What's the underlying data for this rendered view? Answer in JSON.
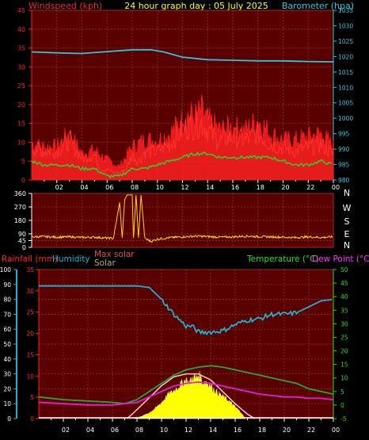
{
  "header": {
    "title": "24 hour graph day : 05 July 2025",
    "left_label": "Windspeed (kph)",
    "right_label": "Barometer (hpa)"
  },
  "colors": {
    "panel_bg": "#5a0000",
    "grid": "#8a3a3a",
    "wind": "#ff0000",
    "gust": "#ff2020",
    "wind_avg": "#2ecc2e",
    "baro": "#28c8d8",
    "direction": "#ffd400",
    "temperature": "#2aa82a",
    "dew_point": "#e020e0",
    "humidity": "#20b0c8",
    "solar": "#ffff00",
    "max_solar": "#ffc8c8",
    "rain": "#ffffff"
  },
  "x_tick_labels": [
    "02",
    "04",
    "06",
    "08",
    "10",
    "12",
    "14",
    "16",
    "18",
    "20",
    "22",
    "00"
  ],
  "chart_data": [
    {
      "type": "line",
      "name": "wind-baro",
      "x_unit": "hour",
      "x_range": [
        0,
        24
      ],
      "left_axis": {
        "label": "Windspeed (kph)",
        "range": [
          0,
          45
        ],
        "ticks": [
          "0",
          "5",
          "10",
          "15",
          "20",
          "25",
          "30",
          "35",
          "40",
          "45"
        ]
      },
      "right_axis": {
        "label": "Barometer (hpa)",
        "range": [
          980,
          1035
        ],
        "ticks": [
          "980",
          "985",
          "990",
          "995",
          "1000",
          "1005",
          "1010",
          "1015",
          "1020",
          "1025",
          "1030",
          "1035"
        ]
      },
      "series": [
        {
          "name": "Barometer (hpa)",
          "axis": "right",
          "x": [
            0,
            2,
            4,
            6,
            8,
            9.5,
            10.5,
            12,
            14,
            16,
            18,
            20,
            22,
            24
          ],
          "values": [
            1021.5,
            1021.2,
            1021.0,
            1021.6,
            1022.2,
            1022.2,
            1021.5,
            1019.8,
            1019.0,
            1018.8,
            1018.6,
            1018.6,
            1018.4,
            1018.3
          ]
        },
        {
          "name": "Wind speed",
          "axis": "left",
          "x": [
            0,
            1,
            2,
            3,
            4,
            5,
            5.5,
            6,
            6.5,
            7,
            7.5,
            8,
            8.5,
            9,
            10,
            11,
            12,
            12.5,
            13,
            13.5,
            14,
            14.5,
            15,
            16,
            17,
            18,
            19,
            20,
            21,
            22,
            23,
            24
          ],
          "values": [
            9,
            8,
            8,
            11,
            6,
            7,
            3,
            3,
            2,
            2,
            3,
            7,
            5,
            8,
            8,
            10,
            14,
            15,
            15,
            16,
            14,
            12,
            11,
            12,
            11,
            13,
            10,
            9,
            8,
            9,
            10,
            7
          ]
        },
        {
          "name": "Gust",
          "axis": "left",
          "x": [
            0,
            1,
            2,
            3,
            4,
            5,
            6,
            7,
            8,
            9,
            10,
            11,
            12,
            12.5,
            13,
            13.5,
            14,
            15,
            16,
            17,
            18,
            19,
            20,
            21,
            22,
            23,
            24
          ],
          "values": [
            11,
            10,
            10,
            14,
            8,
            9,
            6,
            4,
            10,
            12,
            12,
            14,
            18,
            20,
            19,
            21,
            18,
            15,
            16,
            15,
            18,
            14,
            12,
            12,
            13,
            14,
            10
          ]
        },
        {
          "name": "Average",
          "axis": "left",
          "x": [
            0,
            1,
            2,
            3,
            4,
            5,
            6,
            7,
            8,
            9,
            10,
            11,
            12,
            13,
            14,
            15,
            16,
            17,
            18,
            19,
            20,
            21,
            22,
            23,
            24
          ],
          "values": [
            5,
            4,
            4,
            4,
            3,
            3,
            1,
            1,
            3,
            3,
            4,
            5,
            6,
            7,
            7,
            6,
            6,
            6,
            6,
            6,
            5,
            4,
            4,
            5,
            4
          ]
        }
      ]
    },
    {
      "type": "line",
      "name": "wind-direction",
      "x_range": [
        0,
        24
      ],
      "y_axis": {
        "range": [
          0,
          360
        ],
        "ticks": [
          "0",
          "45",
          "90",
          "180",
          "270",
          "360"
        ]
      },
      "right_labels": [
        "N",
        "W",
        "S",
        "E",
        "N"
      ],
      "series": [
        {
          "name": "Wind direction",
          "x": [
            0,
            1,
            2,
            3,
            4,
            5,
            6,
            6.5,
            7,
            7.2,
            7.4,
            7.6,
            8,
            8.1,
            8.3,
            8.5,
            8.7,
            9,
            9.5,
            10,
            11,
            12,
            13,
            14,
            15,
            16,
            17,
            18,
            19,
            20,
            21,
            22,
            23,
            24
          ],
          "values": [
            70,
            72,
            68,
            70,
            66,
            68,
            62,
            60,
            300,
            60,
            320,
            350,
            350,
            60,
            350,
            60,
            350,
            60,
            40,
            55,
            65,
            70,
            75,
            72,
            68,
            70,
            75,
            72,
            70,
            68,
            65,
            70,
            66,
            70
          ]
        }
      ]
    },
    {
      "type": "line",
      "name": "temp-humidity-solar",
      "x_range": [
        0,
        24
      ],
      "axes": [
        {
          "label": "Humidity",
          "range": [
            0,
            100
          ],
          "ticks": [
            "0",
            "10",
            "20",
            "30",
            "40",
            "50",
            "60",
            "70",
            "80",
            "90",
            "100"
          ]
        },
        {
          "label": "Rainfall (mm)",
          "range": [
            0,
            35
          ],
          "ticks": [
            "0",
            "5",
            "10",
            "15",
            "20",
            "25",
            "30",
            "35"
          ]
        },
        {
          "label": "Temperature (°C)",
          "range": [
            -5,
            50
          ],
          "ticks": [
            "-5",
            "0",
            "5",
            "10",
            "15",
            "20",
            "25",
            "30",
            "35",
            "40",
            "45",
            "50"
          ]
        }
      ],
      "legend": [
        "Rainfall (mm)",
        "Humidity",
        "Max solar",
        "Solar",
        "Temperature (°C)",
        "Dew Point (°C)"
      ],
      "series": [
        {
          "name": "Humidity",
          "axis": "Humidity",
          "x": [
            0,
            2,
            4,
            6,
            8,
            9,
            10,
            11,
            12,
            12.5,
            13,
            14,
            15,
            16,
            17,
            18,
            19,
            20,
            21,
            22,
            23,
            24
          ],
          "values": [
            89,
            89,
            89,
            89,
            89,
            88,
            80,
            70,
            62,
            62,
            58,
            58,
            59,
            63,
            66,
            67,
            70,
            70,
            71,
            75,
            79,
            80
          ]
        },
        {
          "name": "Temperature (°C)",
          "axis": "Temperature (°C)",
          "x": [
            0,
            2,
            4,
            6,
            7,
            8,
            9,
            10,
            11,
            12,
            13,
            14,
            15,
            16,
            17,
            18,
            19,
            20,
            21,
            22,
            23,
            24
          ],
          "values": [
            3.0,
            2.0,
            1.5,
            1.0,
            0.5,
            2.0,
            5.0,
            8.0,
            11.0,
            13.0,
            14.0,
            14.5,
            14.0,
            13.0,
            12.0,
            11.0,
            10.0,
            9.0,
            8.0,
            6.0,
            5.0,
            4.0
          ]
        },
        {
          "name": "Dew Point (°C)",
          "axis": "Temperature (°C)",
          "x": [
            0,
            2,
            4,
            6,
            8,
            9,
            10,
            11,
            12,
            13,
            14,
            15,
            16,
            17,
            18,
            19,
            20,
            21,
            22,
            23,
            24
          ],
          "values": [
            1.0,
            0.5,
            0.0,
            0.0,
            1.0,
            3.0,
            5.0,
            7.0,
            8.0,
            8.5,
            8.0,
            7.0,
            6.0,
            5.0,
            4.0,
            3.5,
            3.0,
            3.0,
            2.5,
            2.5,
            2.0
          ]
        },
        {
          "name": "Max solar",
          "axis": "Humidity",
          "x": [
            7.2,
            8,
            9,
            10,
            11,
            12,
            12.5,
            13,
            14,
            15,
            16,
            17,
            17.6
          ],
          "values": [
            0,
            6,
            14,
            22,
            28,
            30,
            30,
            30,
            26,
            18,
            10,
            3,
            0
          ]
        },
        {
          "name": "Solar",
          "axis": "Humidity",
          "x": [
            7.8,
            8.5,
            9,
            9.5,
            10,
            10.5,
            11,
            11.5,
            11.8,
            12,
            12.2,
            12.4,
            12.6,
            12.8,
            13,
            13.2,
            13.4,
            13.6,
            14,
            14.5,
            15,
            15.5,
            16,
            16.5,
            16.8
          ],
          "values": [
            0,
            2,
            4,
            7,
            11,
            16,
            19,
            23,
            25,
            27,
            24,
            26,
            29,
            27,
            30,
            28,
            24,
            26,
            22,
            18,
            15,
            12,
            8,
            4,
            0
          ]
        }
      ]
    }
  ]
}
